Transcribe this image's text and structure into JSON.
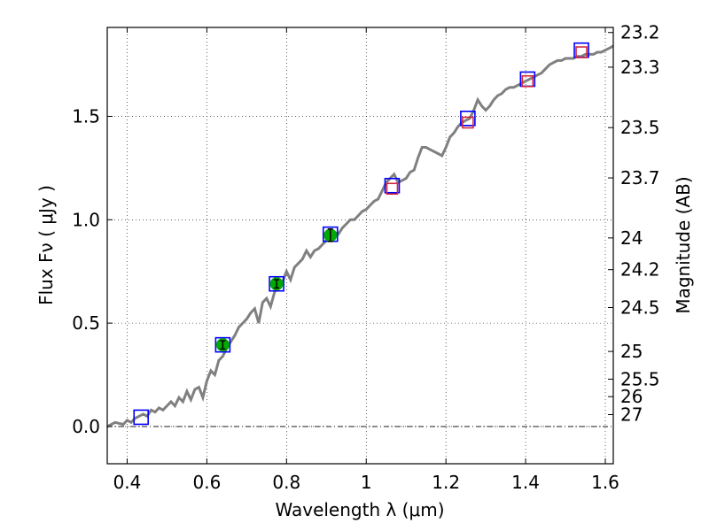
{
  "chart_data": {
    "type": "line",
    "xlabel": "Wavelength  λ (μm)",
    "ylabel": "Flux  Fν  ( μJy )",
    "ylabel_right": "Magnitude (AB)",
    "xlim": [
      0.35,
      1.62
    ],
    "ylim": [
      -0.18,
      1.93
    ],
    "grid": true,
    "x_ticks": [
      0.4,
      0.6,
      0.8,
      1.0,
      1.2,
      1.4,
      1.6
    ],
    "x_tick_labels": [
      "0.4",
      "0.6",
      "0.8",
      "1",
      "1.2",
      "1.4",
      "1.6"
    ],
    "y_ticks": [
      0.0,
      0.5,
      1.0,
      1.5
    ],
    "y_tick_labels": [
      "0.0",
      "0.5",
      "1.0",
      "1.5"
    ],
    "mag_ticks": [
      23.2,
      23.3,
      23.5,
      23.7,
      24,
      24.2,
      24.5,
      25,
      25.5,
      26,
      27
    ],
    "mag_tick_labels": [
      "23.2",
      "23.3",
      "23.5",
      "23.7",
      "24",
      "24.2",
      "24.5",
      "25",
      "25.5",
      "26",
      "27"
    ],
    "series": [
      {
        "kind": "line",
        "color": "#808080",
        "x": [
          0.35,
          0.37,
          0.39,
          0.4,
          0.41,
          0.42,
          0.43,
          0.44,
          0.45,
          0.46,
          0.47,
          0.48,
          0.49,
          0.5,
          0.51,
          0.52,
          0.53,
          0.54,
          0.55,
          0.56,
          0.57,
          0.58,
          0.59,
          0.6,
          0.61,
          0.62,
          0.63,
          0.64,
          0.65,
          0.66,
          0.67,
          0.68,
          0.69,
          0.7,
          0.71,
          0.72,
          0.73,
          0.74,
          0.75,
          0.76,
          0.77,
          0.78,
          0.79,
          0.8,
          0.81,
          0.82,
          0.83,
          0.84,
          0.85,
          0.86,
          0.87,
          0.88,
          0.89,
          0.9,
          0.91,
          0.92,
          0.93,
          0.94,
          0.95,
          0.96,
          0.97,
          0.98,
          0.99,
          1.0,
          1.01,
          1.02,
          1.03,
          1.04,
          1.05,
          1.06,
          1.07,
          1.08,
          1.09,
          1.1,
          1.11,
          1.12,
          1.13,
          1.14,
          1.15,
          1.16,
          1.17,
          1.18,
          1.19,
          1.2,
          1.21,
          1.22,
          1.23,
          1.24,
          1.25,
          1.26,
          1.27,
          1.28,
          1.29,
          1.3,
          1.31,
          1.32,
          1.33,
          1.34,
          1.35,
          1.36,
          1.37,
          1.38,
          1.39,
          1.4,
          1.41,
          1.42,
          1.43,
          1.44,
          1.45,
          1.46,
          1.47,
          1.48,
          1.49,
          1.5,
          1.51,
          1.52,
          1.53,
          1.54,
          1.55,
          1.56,
          1.57,
          1.58,
          1.59,
          1.6,
          1.61,
          1.62
        ],
        "y": [
          0.0,
          0.02,
          0.01,
          0.03,
          0.02,
          0.04,
          0.05,
          0.06,
          0.05,
          0.08,
          0.07,
          0.09,
          0.08,
          0.1,
          0.12,
          0.1,
          0.14,
          0.12,
          0.17,
          0.13,
          0.18,
          0.19,
          0.14,
          0.22,
          0.27,
          0.25,
          0.32,
          0.34,
          0.38,
          0.41,
          0.44,
          0.48,
          0.5,
          0.52,
          0.55,
          0.57,
          0.5,
          0.6,
          0.62,
          0.58,
          0.65,
          0.68,
          0.7,
          0.75,
          0.71,
          0.77,
          0.79,
          0.81,
          0.85,
          0.82,
          0.85,
          0.86,
          0.88,
          0.9,
          0.92,
          0.94,
          0.93,
          0.96,
          0.98,
          1.0,
          1.0,
          1.02,
          1.04,
          1.05,
          1.07,
          1.09,
          1.1,
          1.14,
          1.18,
          1.2,
          1.22,
          1.18,
          1.19,
          1.2,
          1.23,
          1.24,
          1.3,
          1.35,
          1.35,
          1.34,
          1.33,
          1.32,
          1.31,
          1.35,
          1.4,
          1.42,
          1.45,
          1.47,
          1.48,
          1.49,
          1.53,
          1.58,
          1.55,
          1.53,
          1.55,
          1.58,
          1.6,
          1.61,
          1.63,
          1.64,
          1.64,
          1.65,
          1.66,
          1.67,
          1.68,
          1.69,
          1.7,
          1.71,
          1.73,
          1.75,
          1.76,
          1.77,
          1.77,
          1.78,
          1.78,
          1.78,
          1.79,
          1.79,
          1.8,
          1.8,
          1.8,
          1.81,
          1.81,
          1.82,
          1.83,
          1.84
        ]
      },
      {
        "kind": "squares",
        "color": "#0000ff",
        "x": [
          0.435,
          0.64,
          0.775,
          0.91,
          1.065,
          1.255,
          1.405,
          1.54
        ],
        "y": [
          0.045,
          0.395,
          0.69,
          0.93,
          1.165,
          1.49,
          1.68,
          1.82
        ]
      },
      {
        "kind": "squares",
        "color": "#d6283c",
        "x": [
          1.065,
          1.255,
          1.405,
          1.54
        ],
        "y": [
          1.15,
          1.47,
          1.67,
          1.81
        ]
      },
      {
        "kind": "points_with_errors",
        "color": "#00aa00",
        "x": [
          0.64,
          0.775,
          0.91
        ],
        "y": [
          0.395,
          0.69,
          0.925
        ],
        "err": [
          0.02,
          0.02,
          0.03
        ]
      }
    ]
  }
}
